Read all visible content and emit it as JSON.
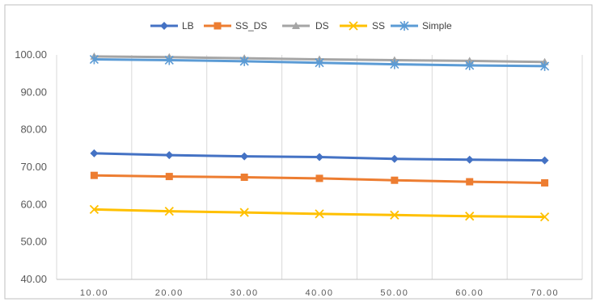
{
  "chart_data": {
    "type": "line",
    "title": "",
    "xlabel": "",
    "ylabel": "",
    "x": [
      10,
      20,
      30,
      40,
      50,
      60,
      70
    ],
    "x_tick_labels": [
      "10.00",
      "20.00",
      "30.00",
      "40.00",
      "50.00",
      "60.00",
      "70.00"
    ],
    "ylim": [
      40,
      100
    ],
    "y_ticks": [
      40,
      50,
      60,
      70,
      80,
      90,
      100
    ],
    "y_tick_labels": [
      "40.00",
      "50.00",
      "60.00",
      "70.00",
      "80.00",
      "90.00",
      "100.00"
    ],
    "grid": "vertical",
    "legend_position": "top",
    "series": [
      {
        "name": "LB",
        "color": "#4472C4",
        "marker": "diamond",
        "values": [
          73.7,
          73.2,
          72.9,
          72.7,
          72.2,
          72.0,
          71.8
        ]
      },
      {
        "name": "SS_DS",
        "color": "#ED7D31",
        "marker": "square",
        "values": [
          67.8,
          67.5,
          67.3,
          67.0,
          66.5,
          66.1,
          65.8
        ]
      },
      {
        "name": "DS",
        "color": "#A5A5A5",
        "marker": "triangle",
        "values": [
          99.6,
          99.4,
          99.1,
          98.8,
          98.6,
          98.4,
          98.1
        ]
      },
      {
        "name": "SS",
        "color": "#FFC000",
        "marker": "x",
        "values": [
          58.7,
          58.2,
          57.9,
          57.5,
          57.2,
          56.9,
          56.7
        ]
      },
      {
        "name": "Simple",
        "color": "#5B9BD5",
        "marker": "star",
        "values": [
          98.8,
          98.6,
          98.3,
          97.9,
          97.5,
          97.2,
          97.0
        ]
      }
    ]
  }
}
